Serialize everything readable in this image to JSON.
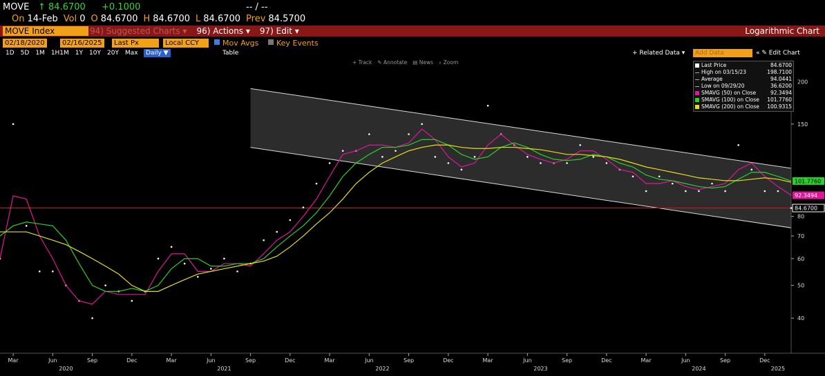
{
  "header": {
    "ticker": "MOVE",
    "last": "↑ 84.6700",
    "change": "+0.1000",
    "bidask": "-- / --",
    "quote": [
      [
        "On",
        "14-Feb"
      ],
      [
        "Vol",
        "0"
      ],
      [
        "O",
        "84.6700"
      ],
      [
        "H",
        "84.6700"
      ],
      [
        "L",
        "84.6700"
      ],
      [
        "Prev",
        "84.5700"
      ]
    ]
  },
  "menu": {
    "security": "MOVE Index",
    "items": [
      "94) Suggested Charts ▾",
      "96) Actions ▾",
      "97) Edit ▾"
    ],
    "mode": "Logarithmic Chart"
  },
  "toolbar": {
    "start": "02/18/2020",
    "end": "02/16/2025",
    "field": "Last Px",
    "currency": "Local CCY",
    "mov_avgs": "Mov Avgs",
    "key_events": "Key Events",
    "periods": [
      "1D",
      "5D",
      "1M",
      "1H1M",
      "1Y",
      "10Y",
      "20Y",
      "Max"
    ],
    "frequency": "Daily ▼",
    "table": "Table",
    "related": "+ Related Data ▾",
    "add_data": "Add Data",
    "edit_chart": "« ✎ Edit Chart"
  },
  "chart_tools": [
    "+ Track",
    "✎ Annotate",
    "▤ News",
    "⌕ Zoom"
  ],
  "chart_data": {
    "type": "line",
    "log_scale": true,
    "x": [
      "2020-02",
      "2020-03",
      "2020-04",
      "2020-05",
      "2020-06",
      "2020-07",
      "2020-08",
      "2020-09",
      "2020-10",
      "2020-11",
      "2020-12",
      "2021-01",
      "2021-02",
      "2021-03",
      "2021-04",
      "2021-05",
      "2021-06",
      "2021-07",
      "2021-08",
      "2021-09",
      "2021-10",
      "2021-11",
      "2021-12",
      "2022-01",
      "2022-02",
      "2022-03",
      "2022-04",
      "2022-05",
      "2022-06",
      "2022-07",
      "2022-08",
      "2022-09",
      "2022-10",
      "2022-11",
      "2022-12",
      "2023-01",
      "2023-02",
      "2023-03",
      "2023-04",
      "2023-05",
      "2023-06",
      "2023-07",
      "2023-08",
      "2023-09",
      "2023-10",
      "2023-11",
      "2023-12",
      "2024-01",
      "2024-02",
      "2024-03",
      "2024-04",
      "2024-05",
      "2024-06",
      "2024-07",
      "2024-08",
      "2024-09",
      "2024-10",
      "2024-11",
      "2024-12",
      "2025-01",
      "2025-02"
    ],
    "xlim": [
      "2020-02",
      "2025-02"
    ],
    "ylim": [
      31.5,
      232
    ],
    "yticks": [
      40,
      50,
      60,
      70,
      80,
      150,
      200
    ],
    "xticks": [
      {
        "value": "2020-03",
        "label": "Mar"
      },
      {
        "value": "2020-06",
        "label": "Jun"
      },
      {
        "value": "2020-09",
        "label": "Sep"
      },
      {
        "value": "2020-12",
        "label": "Dec"
      },
      {
        "value": "2021-03",
        "label": "Mar"
      },
      {
        "value": "2021-06",
        "label": "Jun"
      },
      {
        "value": "2021-09",
        "label": "Sep"
      },
      {
        "value": "2021-12",
        "label": "Dec"
      },
      {
        "value": "2022-03",
        "label": "Mar"
      },
      {
        "value": "2022-06",
        "label": "Jun"
      },
      {
        "value": "2022-09",
        "label": "Sep"
      },
      {
        "value": "2022-12",
        "label": "Dec"
      },
      {
        "value": "2023-03",
        "label": "Mar"
      },
      {
        "value": "2023-06",
        "label": "Jun"
      },
      {
        "value": "2023-09",
        "label": "Sep"
      },
      {
        "value": "2023-12",
        "label": "Dec"
      },
      {
        "value": "2024-03",
        "label": "Mar"
      },
      {
        "value": "2024-06",
        "label": "Jun"
      },
      {
        "value": "2024-09",
        "label": "Sep"
      },
      {
        "value": "2024-12",
        "label": "Dec"
      }
    ],
    "year_labels": [
      {
        "value": "2020-07",
        "label": "2020"
      },
      {
        "value": "2021-07",
        "label": "2021"
      },
      {
        "value": "2022-07",
        "label": "2022"
      },
      {
        "value": "2023-07",
        "label": "2023"
      },
      {
        "value": "2024-07",
        "label": "2024"
      },
      {
        "value": "2025-01",
        "label": "2025"
      }
    ],
    "channel": {
      "x": [
        "2021-09",
        "2025-02"
      ],
      "upper": [
        191,
        111
      ],
      "lower": [
        128,
        74
      ]
    },
    "series": [
      {
        "name": "Last Price",
        "color": "#ffffff",
        "style": "dots",
        "legend_value": "84.6700",
        "tag": true,
        "last_line_color": "#d01818",
        "values": [
          60,
          150,
          75,
          55,
          55,
          50,
          45,
          40,
          50,
          48,
          45,
          48,
          60,
          65,
          58,
          53,
          56,
          60,
          55,
          58,
          68,
          72,
          78,
          85,
          100,
          115,
          125,
          125,
          140,
          120,
          125,
          140,
          150,
          120,
          115,
          110,
          120,
          170,
          140,
          130,
          120,
          115,
          115,
          115,
          130,
          120,
          115,
          110,
          105,
          95,
          105,
          100,
          95,
          95,
          100,
          95,
          130,
          110,
          95,
          95,
          84.67
        ]
      },
      {
        "name": "SMAVG (50)  on Close",
        "color": "#e0169a",
        "style": "line",
        "legend_value": "92.3494",
        "tag": true,
        "values": [
          60,
          92,
          90,
          70,
          60,
          50,
          45,
          44,
          48,
          47,
          47,
          47,
          55,
          62,
          62,
          55,
          55,
          58,
          58,
          57,
          62,
          68,
          72,
          80,
          90,
          105,
          122,
          125,
          130,
          130,
          128,
          132,
          145,
          135,
          120,
          112,
          115,
          130,
          140,
          130,
          122,
          118,
          115,
          118,
          125,
          125,
          118,
          110,
          108,
          100,
          100,
          102,
          98,
          96,
          98,
          100,
          110,
          115,
          105,
          98,
          92.3494
        ]
      },
      {
        "name": "SMAVG (100)  on Close",
        "color": "#2bcf2b",
        "style": "line",
        "legend_value": "101.7760",
        "tag": true,
        "values": [
          70,
          75,
          77,
          76,
          75,
          68,
          58,
          50,
          48,
          48,
          49,
          48,
          50,
          56,
          60,
          60,
          57,
          57,
          58,
          58,
          60,
          65,
          70,
          75,
          82,
          92,
          105,
          115,
          122,
          128,
          128,
          130,
          135,
          135,
          130,
          122,
          118,
          120,
          128,
          132,
          128,
          122,
          118,
          117,
          118,
          122,
          120,
          115,
          112,
          106,
          103,
          102,
          100,
          98,
          97,
          98,
          103,
          108,
          108,
          105,
          101.776
        ]
      },
      {
        "name": "SMAVG (200)  on Close",
        "color": "#e6df12",
        "style": "line",
        "legend_value": "100.9315",
        "tag": false,
        "values": [
          72,
          72,
          72,
          70,
          68,
          66,
          63,
          60,
          57,
          54,
          50,
          48,
          48,
          50,
          52,
          54,
          55,
          56,
          57,
          58,
          59,
          61,
          65,
          70,
          76,
          82,
          90,
          100,
          108,
          115,
          120,
          125,
          128,
          130,
          130,
          128,
          127,
          127,
          128,
          128,
          127,
          126,
          124,
          122,
          122,
          121,
          120,
          118,
          115,
          112,
          110,
          108,
          106,
          104,
          103,
          102,
          102,
          103,
          104,
          103,
          100.9315
        ]
      }
    ],
    "legend_stats": [
      {
        "label": "High on 03/15/23",
        "value": "198.7100"
      },
      {
        "label": "Average",
        "value": "94.0441"
      },
      {
        "label": "Low on 09/29/20",
        "value": "36.6200"
      }
    ]
  }
}
